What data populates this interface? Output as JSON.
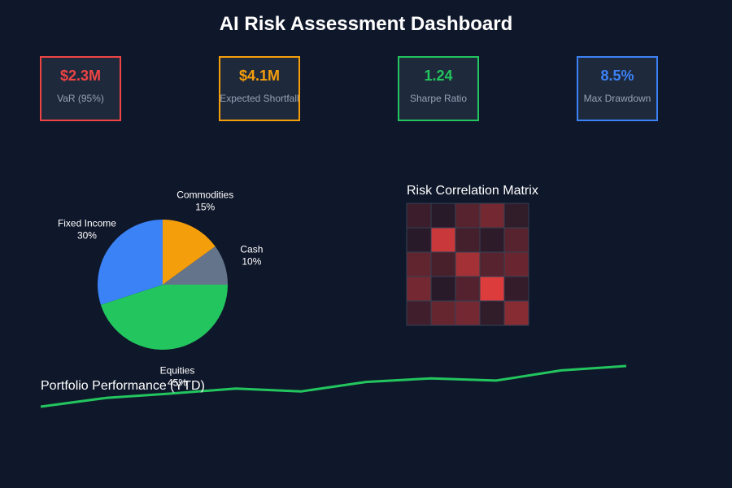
{
  "title": "AI Risk Assessment Dashboard",
  "kpis": [
    {
      "value": "$2.3M",
      "label": "VaR (95%)",
      "color": "#ef4444"
    },
    {
      "value": "$4.1M",
      "label": "Expected Shortfall",
      "color": "#f59e0b"
    },
    {
      "value": "1.24",
      "label": "Sharpe Ratio",
      "color": "#22c55e"
    },
    {
      "value": "8.5%",
      "label": "Max Drawdown",
      "color": "#3b82f6"
    }
  ],
  "correlation_title": "Risk Correlation Matrix",
  "performance_title": "Portfolio Performance (YTD)",
  "chart_data": [
    {
      "type": "pie",
      "slices": [
        {
          "label": "Commodities",
          "value": 15,
          "display": "15%",
          "color": "#f59e0b"
        },
        {
          "label": "Cash",
          "value": 10,
          "display": "10%",
          "color": "#64748b"
        },
        {
          "label": "Equities",
          "value": 45,
          "display": "45%",
          "color": "#22c55e"
        },
        {
          "label": "Fixed Income",
          "value": 30,
          "display": "30%",
          "color": "#3b82f6"
        }
      ]
    },
    {
      "type": "heatmap",
      "title": "Risk Correlation Matrix",
      "values": [
        [
          0.15,
          0.05,
          0.3,
          0.45,
          0.1
        ],
        [
          0.05,
          0.9,
          0.2,
          0.08,
          0.3
        ],
        [
          0.35,
          0.22,
          0.7,
          0.3,
          0.4
        ],
        [
          0.45,
          0.06,
          0.28,
          1.0,
          0.12
        ],
        [
          0.18,
          0.38,
          0.45,
          0.1,
          0.55
        ]
      ]
    },
    {
      "type": "line",
      "title": "Portfolio Performance (YTD)",
      "color": "#22c55e",
      "values": [
        100,
        102.4,
        103.6,
        105,
        104.2,
        106.8,
        107.8,
        107.2,
        110,
        111.2
      ]
    }
  ]
}
